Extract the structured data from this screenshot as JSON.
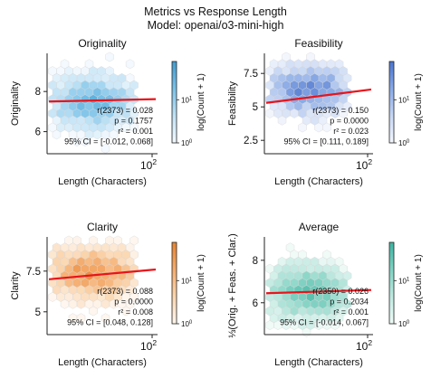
{
  "figure": {
    "title": "Metrics vs Response Length",
    "subtitle": "Model: openai/o3-mini-high"
  },
  "chart_data": [
    {
      "type": "scatter",
      "subtype": "hexbin",
      "title": "Originality",
      "xlabel": "Length (Characters)",
      "ylabel": "Originality",
      "x_scale": "log",
      "x_tick_label": "10^2",
      "yticks": [
        6,
        8
      ],
      "ylim": [
        4.9,
        9.9
      ],
      "colormap": [
        "#f2f9fe",
        "#bfe2f6",
        "#78c1e9",
        "#3f9ccf"
      ],
      "colorbar": {
        "label": "log(Count + 1)",
        "ticks": [
          "10^0",
          "10^1"
        ]
      },
      "regression": {
        "y_at_left": 7.5,
        "y_at_right": 7.62,
        "color": "#e8141b"
      },
      "stats": [
        "r(2373) = 0.028",
        "p = 0.1757",
        "r² = 0.001",
        "95% CI = [-0.012, 0.068]"
      ],
      "density": {
        "y_center": 7.5,
        "y_spread": 1.35,
        "peak": 0.78
      }
    },
    {
      "type": "scatter",
      "subtype": "hexbin",
      "title": "Feasibility",
      "xlabel": "Length (Characters)",
      "ylabel": "Feasibility",
      "x_scale": "log",
      "x_tick_label": "10^2",
      "yticks": [
        2.5,
        5.0,
        7.5
      ],
      "ylim": [
        1.5,
        9.0
      ],
      "colormap": [
        "#f3f6fd",
        "#c6d6f4",
        "#88a9e6",
        "#4b75cf"
      ],
      "colorbar": {
        "label": "log(Count + 1)",
        "ticks": [
          "10^0",
          "10^1"
        ]
      },
      "regression": {
        "y_at_left": 5.3,
        "y_at_right": 6.3,
        "color": "#e8141b"
      },
      "stats": [
        "r(2373) = 0.150",
        "p = 0.0000",
        "r² = 0.023",
        "95% CI = [0.111, 0.189]"
      ],
      "density": {
        "y_center": 6.3,
        "y_spread": 1.9,
        "peak": 0.92
      }
    },
    {
      "type": "scatter",
      "subtype": "hexbin",
      "title": "Clarity",
      "xlabel": "Length (Characters)",
      "ylabel": "Clarity",
      "x_scale": "log",
      "x_tick_label": "10^2",
      "yticks": [
        5.0,
        7.5
      ],
      "ylim": [
        3.6,
        9.6
      ],
      "colormap": [
        "#fef6ee",
        "#fbd5ad",
        "#f6ab6a",
        "#e8822e"
      ],
      "colorbar": {
        "label": "log(Count + 1)",
        "ticks": [
          "10^0",
          "10^1"
        ]
      },
      "regression": {
        "y_at_left": 7.0,
        "y_at_right": 7.6,
        "color": "#e8141b"
      },
      "stats": [
        "r(2373) = 0.088",
        "p = 0.0000",
        "r² = 0.008",
        "95% CI = [0.048, 0.128]"
      ],
      "density": {
        "y_center": 7.4,
        "y_spread": 1.6,
        "peak": 0.85
      }
    },
    {
      "type": "scatter",
      "subtype": "hexbin",
      "title": "Average",
      "xlabel": "Length (Characters)",
      "ylabel": "⅓(Orig. + Feas. + Clar.)",
      "x_scale": "log",
      "x_tick_label": "10^2",
      "yticks": [
        6,
        8
      ],
      "ylim": [
        4.5,
        9.1
      ],
      "colormap": [
        "#effaf7",
        "#bfe9e0",
        "#7fd2c2",
        "#3db3a0"
      ],
      "colorbar": {
        "label": "log(Count + 1)",
        "ticks": [
          "10^0",
          "10^1"
        ]
      },
      "regression": {
        "y_at_left": 6.45,
        "y_at_right": 6.6,
        "color": "#e8141b"
      },
      "stats": [
        "r(2350) = 0.026",
        "p = 0.2034",
        "r² = 0.001",
        "95% CI = [-0.014, 0.067]"
      ],
      "density": {
        "y_center": 6.5,
        "y_spread": 1.3,
        "peak": 0.88
      }
    }
  ]
}
